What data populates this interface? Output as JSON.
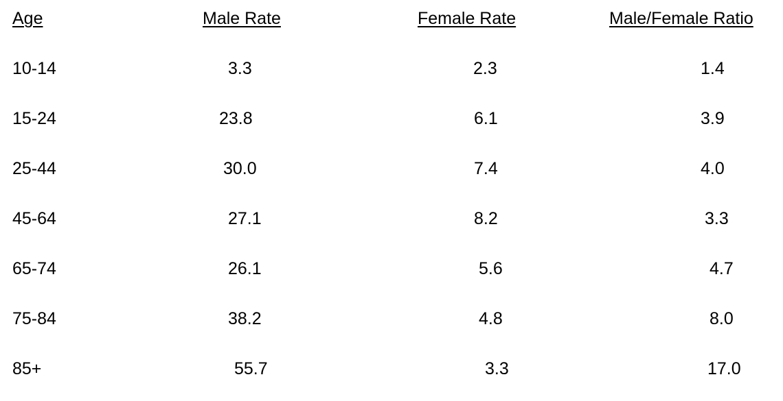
{
  "headers": [
    "Age",
    "Male Rate",
    "Female Rate",
    "Male/Female Ratio"
  ],
  "rows": [
    [
      "10-14",
      "3.3",
      "2.3",
      "1.4"
    ],
    [
      "15-24",
      "23.8",
      "6.1",
      "3.9"
    ],
    [
      "25-44",
      "30.0",
      "7.4",
      "4.0"
    ],
    [
      "45-64",
      "27.1",
      "8.2",
      "3.3"
    ],
    [
      "65-74",
      "26.1",
      "5.6",
      "4.7"
    ],
    [
      "75-84",
      "38.2",
      "4.8",
      "8.0"
    ],
    [
      "85+",
      "55.7",
      "3.3",
      "17.0"
    ]
  ]
}
